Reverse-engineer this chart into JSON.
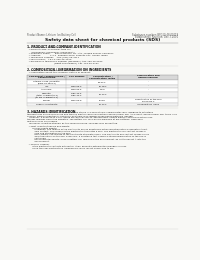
{
  "bg_color": "#f8f8f5",
  "header_left": "Product Name: Lithium Ion Battery Cell",
  "header_right_line1": "Substance number: BFG10-48-00019",
  "header_right_line2": "Established / Revision: Dec.7.2010",
  "title": "Safety data sheet for chemical products (SDS)",
  "section1_title": "1. PRODUCT AND COMPANY IDENTIFICATION",
  "section1_lines": [
    "  • Product name: Lithium Ion Battery Cell",
    "  • Product code: Cylindrical-type cell",
    "     (IHR18650U, IHR18650J, IHR18650A)",
    "  • Company name:      Banyu Denchi, Co., Ltd., Mobile Energy Company",
    "  • Address:            2-2-1  Kamimaruzen, Sumoto-City, Hyogo, Japan",
    "  • Telephone number:   +81-(799)-26-4111",
    "  • Fax number:   +81-1-799-26-4120",
    "  • Emergency telephone number (Weekday) +81-799-26-0642",
    "                                    (Night and holiday) +81-799-26-4101"
  ],
  "section2_title": "2. COMPOSITION / INFORMATION ON INGREDIENTS",
  "section2_intro": "  • Substance or preparation: Preparation",
  "section2_sub": "  • Information about the chemical nature of product:",
  "table_headers": [
    "Component chemical name /\nSeveral name",
    "CAS number",
    "Concentration /\nConcentration range",
    "Classification and\nhazard labeling"
  ],
  "table_rows": [
    [
      "Lithium oxide /cobaltite\n(LiMn-Co-Ni2O4)",
      "-",
      "30-40%",
      "-"
    ],
    [
      "Iron",
      "7439-89-6",
      "15-25%",
      "-"
    ],
    [
      "Aluminum",
      "7429-90-5",
      "2-5%",
      "-"
    ],
    [
      "Graphite\n(total in graphite-1)\n(of Mn in graphite-1)",
      "7782-42-5\n7782-44-2",
      "10-20%",
      "-"
    ],
    [
      "Copper",
      "7440-50-8",
      "5-15%",
      "Sensitization of the skin\ngroup No.2"
    ],
    [
      "Organic electrolyte",
      "-",
      "10-20%",
      "Inflammatory liquid"
    ]
  ],
  "section3_title": "3. HAZARDS IDENTIFICATION",
  "section3_body": [
    "   For this battery cell, chemical materials are stored in a hermetically sealed metal case, designed to withstand",
    "temperatures during normal use and there is electro-chemical reactions during normal use. As a result, during normal use, there is no",
    "physical danger of ignition or explosion and there is no danger of hazardous materials leakage.",
    "   However, if exposed to a fire, added mechanical shocks, decomposed, vented electro-chemical reactions can,",
    "the gas releases cannot be operated. The battery cell case will be breached at fire patterns. Hazardous",
    "materials may be released.",
    "   Moreover, if heated strongly by the surrounding fire, solid gas may be emitted.",
    "",
    "  • Most important hazard and effects:",
    "       Human health effects:",
    "          Inhalation: The release of the electrolyte has an anesthesia action and stimulates a respiratory tract.",
    "          Skin contact: The release of the electrolyte stimulates a skin. The electrolyte skin contact causes a",
    "          sore and stimulation on the skin.",
    "          Eye contact: The release of the electrolyte stimulates eyes. The electrolyte eye contact causes a sore",
    "          and stimulation on the eye. Especially, a substance that causes a strong inflammation of the eye is",
    "          contained.",
    "          Environmental effects: Since a battery cell remains in the environment, do not throw out it into the",
    "          environment.",
    "",
    "  • Specific hazards:",
    "       If the electrolyte contacts with water, it will generate detrimental hydrogen fluoride.",
    "       Since the seal electrolyte is inflammable liquid, do not bring close to fire."
  ]
}
